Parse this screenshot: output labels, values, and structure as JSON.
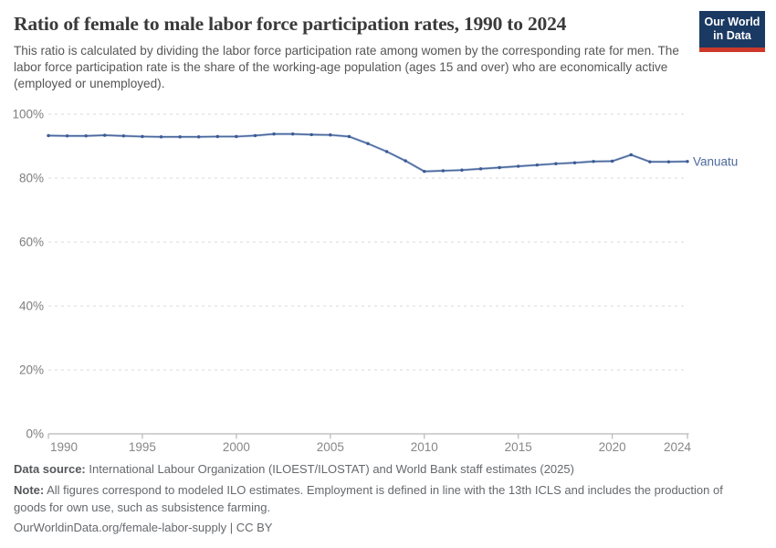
{
  "header": {
    "title": "Ratio of female to male labor force participation rates, 1990 to 2024",
    "subtitle": "This ratio is calculated by dividing the labor force participation rate among women by the corresponding rate for men. The labor force participation rate is the share of the working-age population (ages 15 and over) who are economically active (employed or unemployed)."
  },
  "logo": {
    "line1": "Our World",
    "line2": "in Data",
    "bg_color": "#1b3a63",
    "bar_color": "#cc392b"
  },
  "chart_data": {
    "type": "line",
    "title": "Ratio of female to male labor force participation rates, 1990 to 2024",
    "entity": "Vanuatu",
    "unit": "%",
    "x": [
      1990,
      1991,
      1992,
      1993,
      1994,
      1995,
      1996,
      1997,
      1998,
      1999,
      2000,
      2001,
      2002,
      2003,
      2004,
      2005,
      2006,
      2007,
      2008,
      2009,
      2010,
      2011,
      2012,
      2013,
      2014,
      2015,
      2016,
      2017,
      2018,
      2019,
      2020,
      2021,
      2022,
      2023,
      2024
    ],
    "series": [
      {
        "name": "Vanuatu",
        "values": [
          93.3,
          93.2,
          93.2,
          93.4,
          93.2,
          93.0,
          92.9,
          92.9,
          92.9,
          93.0,
          93.0,
          93.3,
          93.8,
          93.8,
          93.6,
          93.5,
          93.0,
          90.8,
          88.3,
          85.4,
          82.1,
          82.3,
          82.5,
          82.9,
          83.3,
          83.7,
          84.1,
          84.5,
          84.8,
          85.2,
          85.3,
          87.3,
          85.1,
          85.1,
          85.2
        ]
      }
    ],
    "xticks": [
      1990,
      1995,
      2000,
      2005,
      2010,
      2015,
      2020,
      2024
    ],
    "yticks": [
      0,
      20,
      40,
      60,
      80,
      100
    ],
    "ytick_suffix": "%",
    "xlim": [
      1990,
      2024
    ],
    "ylim": [
      0,
      100
    ],
    "grid": true,
    "legend_position": "end-of-line",
    "line_color": "#4c6a9c",
    "line_halo_color": "#b9c8e2",
    "dot_color": "#3a5a94",
    "entity_label_color": "#4c6a9c",
    "grid_color": "#dadada",
    "axis_color": "#b8b8b8",
    "tick_label_color": "#7d7d7d"
  },
  "footer": {
    "data_source_label": "Data source:",
    "data_source_text": "International Labour Organization (ILOEST/ILOSTAT) and World Bank staff estimates (2025)",
    "note_label": "Note:",
    "note_text": "All figures correspond to modeled ILO estimates. Employment is defined in line with the 13th ICLS and includes the production of goods for own use, such as subsistence farming.",
    "url": "OurWorldinData.org/female-labor-supply",
    "separator": " | ",
    "license": "CC BY"
  }
}
